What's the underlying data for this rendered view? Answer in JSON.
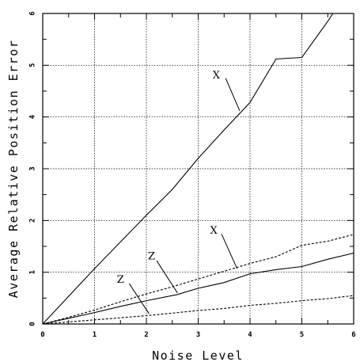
{
  "chart_data": {
    "type": "line",
    "title": "",
    "xlabel": "Noise Level",
    "ylabel": "Average Relative Position Error",
    "xlim": [
      0,
      6
    ],
    "ylim": [
      0,
      6
    ],
    "x_ticks": [
      "0",
      "1",
      "2",
      "3",
      "4",
      "5",
      "6"
    ],
    "y_ticks": [
      "0",
      "1",
      "2",
      "3",
      "4",
      "5",
      "6"
    ],
    "grid": true,
    "series": [
      {
        "style": "solid",
        "x": [
          0,
          1,
          2,
          2.5,
          3,
          3.5,
          4,
          4.5,
          5,
          5.5,
          5.6
        ],
        "y": [
          0,
          1.07,
          2.1,
          2.6,
          3.2,
          3.75,
          4.28,
          5.12,
          5.15,
          5.85,
          6.0
        ]
      },
      {
        "style": "dashed",
        "x": [
          0,
          0.5,
          1,
          1.5,
          2,
          2.5,
          3,
          3.5,
          4,
          4.5,
          5,
          5.5,
          6
        ],
        "y": [
          0,
          0.13,
          0.27,
          0.43,
          0.58,
          0.72,
          0.87,
          1.02,
          1.17,
          1.3,
          1.52,
          1.6,
          1.73
        ]
      },
      {
        "style": "solid",
        "x": [
          0,
          0.5,
          1,
          1.5,
          2,
          2.6,
          3,
          3.5,
          4,
          4.5,
          5,
          5.5,
          6
        ],
        "y": [
          0,
          0.11,
          0.22,
          0.34,
          0.45,
          0.57,
          0.69,
          0.8,
          0.97,
          1.05,
          1.11,
          1.25,
          1.37
        ]
      },
      {
        "style": "dashed",
        "x": [
          0,
          0.5,
          1,
          1.5,
          2,
          2.5,
          3,
          3.5,
          4,
          4.5,
          5,
          5.5,
          6
        ],
        "y": [
          0,
          0.04,
          0.08,
          0.12,
          0.16,
          0.21,
          0.26,
          0.3,
          0.36,
          0.4,
          0.45,
          0.49,
          0.55
        ]
      }
    ],
    "annotations": [
      {
        "text": "X",
        "x": 3.35,
        "y": 4.8,
        "ax": 3.53,
        "ay": 4.75,
        "tx": 3.8,
        "ty": 4.12
      },
      {
        "text": "X",
        "x": 3.3,
        "y": 1.8,
        "ax": 3.45,
        "ay": 1.74,
        "tx": 3.75,
        "ty": 1.07
      },
      {
        "text": "Z",
        "x": 2.1,
        "y": 1.3,
        "ax": 2.2,
        "ay": 1.22,
        "tx": 2.6,
        "ty": 0.6
      },
      {
        "text": "Z",
        "x": 1.5,
        "y": 0.85,
        "ax": 1.67,
        "ay": 0.78,
        "tx": 2.05,
        "ty": 0.2
      }
    ]
  }
}
